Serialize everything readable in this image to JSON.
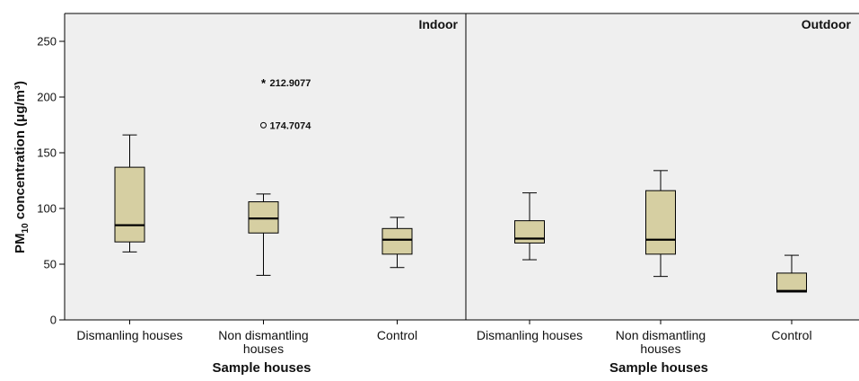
{
  "chart_data": {
    "type": "box",
    "ylabel_main": "PM",
    "ylabel_sub": "10",
    "ylabel_rest": " concentration (μg/m³)",
    "ylim": [
      0,
      275
    ],
    "yticks": [
      0,
      50,
      100,
      150,
      200,
      250
    ],
    "colors": {
      "box_fill": "#d6cfa2",
      "panel_bg": "#efefef",
      "stroke": "#000000"
    },
    "panels": [
      {
        "title": "Indoor",
        "xlabel": "Sample houses",
        "groups": [
          {
            "label": [
              "Dismanling houses"
            ],
            "whisker_low": 61,
            "q1": 70,
            "median": 85,
            "q3": 137,
            "whisker_high": 166,
            "outliers": []
          },
          {
            "label": [
              "Non dismantling",
              "houses"
            ],
            "whisker_low": 40,
            "q1": 78,
            "median": 91,
            "q3": 106,
            "whisker_high": 113,
            "outliers": [
              {
                "value": 212.9077,
                "label": "212.9077",
                "marker": "star"
              },
              {
                "value": 174.7074,
                "label": "174.7074",
                "marker": "circle"
              }
            ]
          },
          {
            "label": [
              "Control"
            ],
            "whisker_low": 47,
            "q1": 59,
            "median": 72,
            "q3": 82,
            "whisker_high": 92,
            "outliers": []
          }
        ]
      },
      {
        "title": "Outdoor",
        "xlabel": "Sample houses",
        "groups": [
          {
            "label": [
              "Dismanling houses"
            ],
            "whisker_low": 54,
            "q1": 69,
            "median": 73,
            "q3": 89,
            "whisker_high": 114,
            "outliers": []
          },
          {
            "label": [
              "Non dismantling",
              "houses"
            ],
            "whisker_low": 39,
            "q1": 59,
            "median": 72,
            "q3": 116,
            "whisker_high": 134,
            "outliers": []
          },
          {
            "label": [
              "Control"
            ],
            "whisker_low": 25,
            "q1": 25,
            "median": 26,
            "q3": 42,
            "whisker_high": 58,
            "outliers": []
          }
        ]
      }
    ]
  }
}
